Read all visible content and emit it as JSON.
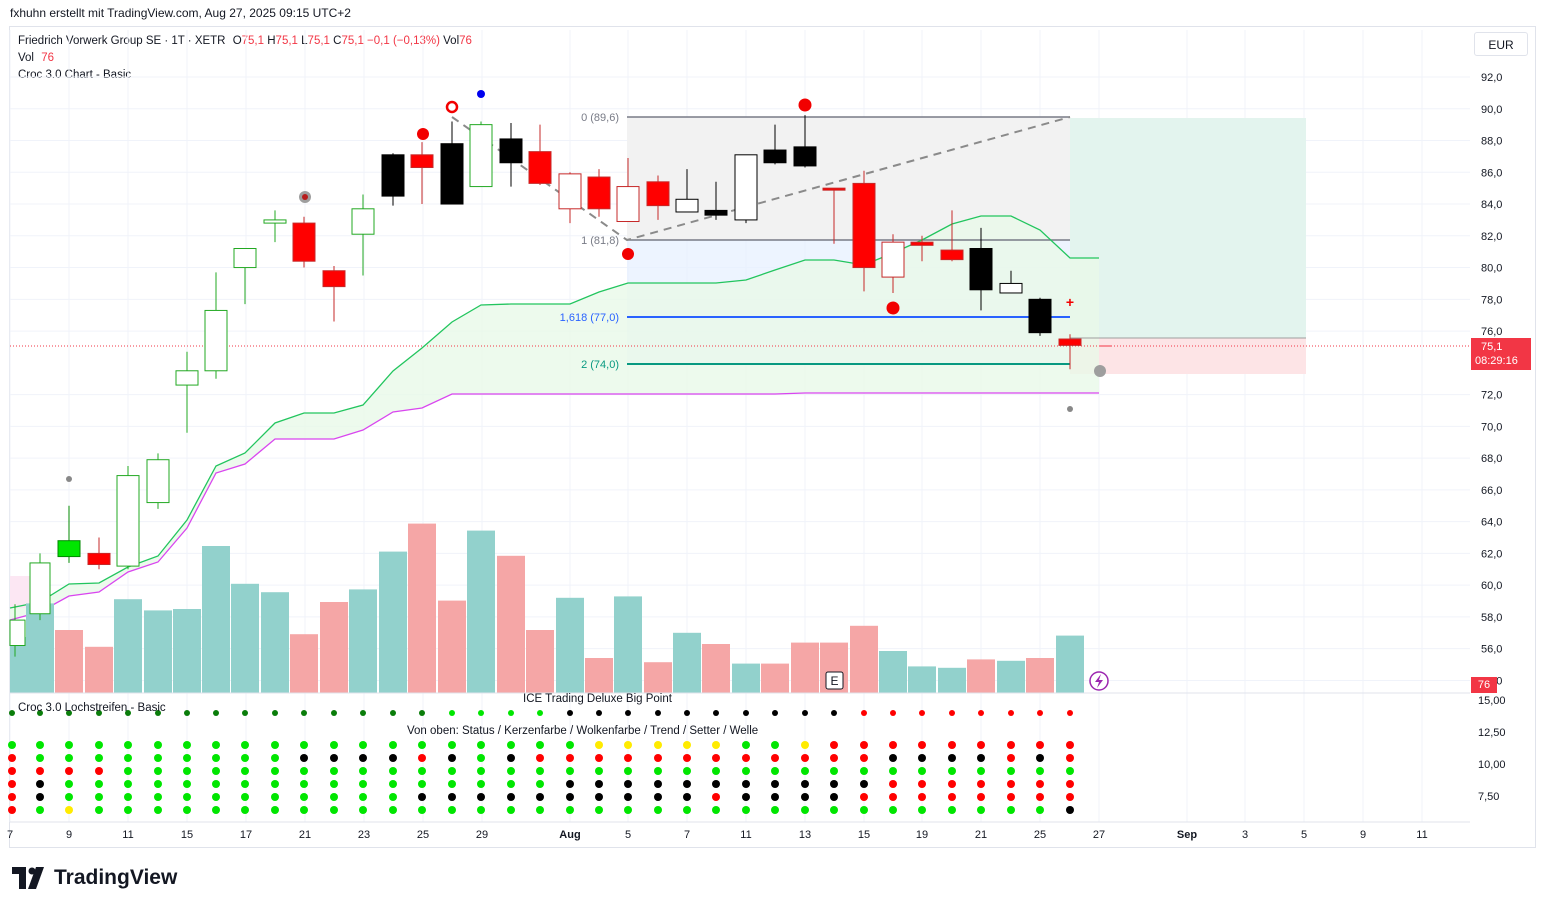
{
  "header": {
    "author_line": "fxhuhn erstellt mit TradingView.com, Aug 27, 2025 09:15 UTC+2"
  },
  "legend": {
    "symbol": "Friedrich Vorwerk Group SE · 1T · XETR",
    "o_label": "O",
    "o_value": "75,1",
    "h_label": "H",
    "h_value": "75,1",
    "l_label": "L",
    "l_value": "75,1",
    "c_label": "C",
    "c_value": "75,1",
    "change": "−0,1 (−0,13%)",
    "vol_label": "Vol",
    "vol_value": "76",
    "vol_line_label": "Vol",
    "vol_line_value": "76",
    "indicator": "Croc 3.0 Chart - Basic"
  },
  "currency": "EUR",
  "price_tag": {
    "price": "75,1",
    "countdown": "08:29:16"
  },
  "volume_tag": "76",
  "pane2": {
    "title_left": "Croc 3.0 Lochstreifen - Basic",
    "title_center_1": "ICE Trading Deluxe Big Point",
    "title_center_2": "Von oben: Status / Kerzenfarbe / Wolkenfarbe / Trend / Setter / Welle"
  },
  "brand": "TradingView",
  "colors": {
    "up": "#089981",
    "down": "#f23645",
    "accent": "#2962ff"
  },
  "chart_data": {
    "type": "candlestick",
    "y_ticks": [
      "92,0",
      "90,0",
      "88,0",
      "86,0",
      "84,0",
      "82,0",
      "80,0",
      "78,0",
      "76,0",
      "72,0",
      "70,0",
      "68,0",
      "66,0",
      "64,0",
      "62,0",
      "60,0",
      "58,0",
      "56,0",
      "54,0"
    ],
    "y2_ticks": [
      "15,00",
      "12,50",
      "10,00",
      "7,50"
    ],
    "x_ticks": [
      "7",
      "9",
      "11",
      "15",
      "17",
      "21",
      "23",
      "25",
      "29",
      "Aug",
      "5",
      "7",
      "11",
      "13",
      "15",
      "19",
      "21",
      "25",
      "27",
      "Sep",
      "3",
      "5",
      "9",
      "11"
    ],
    "fib_labels": [
      "0 (89,6)",
      "1 (81,8)",
      "1,618 (77,0)",
      "2 (74,0)"
    ],
    "candles": [
      {
        "x": 15,
        "o": 56.2,
        "h": 58.8,
        "l": 55.5,
        "c": 57.8,
        "fill": "#ffffff"
      },
      {
        "x": 40,
        "o": 58.2,
        "h": 62.0,
        "l": 57.8,
        "c": 61.4,
        "fill": "#ffffff"
      },
      {
        "x": 69,
        "o": 61.8,
        "h": 65.0,
        "l": 61.4,
        "c": 62.8,
        "fill": "#00e600"
      },
      {
        "x": 99,
        "o": 62.0,
        "h": 63.0,
        "l": 61.0,
        "c": 61.3,
        "fill": "#ff0000"
      },
      {
        "x": 128,
        "o": 61.2,
        "h": 67.5,
        "l": 61.0,
        "c": 66.9,
        "fill": "#ffffff"
      },
      {
        "x": 158,
        "o": 65.2,
        "h": 68.3,
        "l": 64.8,
        "c": 67.9,
        "fill": "#ffffff"
      },
      {
        "x": 187,
        "o": 72.6,
        "h": 74.7,
        "l": 69.6,
        "c": 73.5,
        "fill": "#ffffff"
      },
      {
        "x": 216,
        "o": 73.5,
        "h": 79.7,
        "l": 73.0,
        "c": 77.3,
        "fill": "#ffffff"
      },
      {
        "x": 245,
        "o": 80.0,
        "h": 81.2,
        "l": 77.7,
        "c": 81.2,
        "fill": "#ffffff"
      },
      {
        "x": 275,
        "o": 82.8,
        "h": 83.6,
        "l": 81.6,
        "c": 83.0,
        "fill": "#ffffff"
      },
      {
        "x": 304,
        "o": 82.8,
        "h": 83.2,
        "l": 80.0,
        "c": 80.4,
        "fill": "#ff0000"
      },
      {
        "x": 334,
        "o": 79.8,
        "h": 80.1,
        "l": 76.6,
        "c": 78.8,
        "fill": "#ff0000"
      },
      {
        "x": 363,
        "o": 82.1,
        "h": 84.6,
        "l": 79.5,
        "c": 83.7,
        "fill": "#ffffff"
      },
      {
        "x": 393,
        "o": 84.5,
        "h": 87.2,
        "l": 83.9,
        "c": 87.1,
        "fill": "#000000"
      },
      {
        "x": 422,
        "o": 87.1,
        "h": 87.9,
        "l": 84.0,
        "c": 86.3,
        "fill": "#ff0000"
      },
      {
        "x": 452,
        "o": 87.8,
        "h": 89.2,
        "l": 84.0,
        "c": 84.0,
        "fill": "#000000"
      },
      {
        "x": 481,
        "o": 85.1,
        "h": 89.2,
        "l": 85.1,
        "c": 89.0,
        "fill": "#ffffff"
      },
      {
        "x": 511,
        "o": 88.1,
        "h": 89.1,
        "l": 85.1,
        "c": 86.6,
        "fill": "#000000"
      },
      {
        "x": 540,
        "o": 87.3,
        "h": 89.0,
        "l": 85.2,
        "c": 85.3,
        "fill": "#ff0000"
      },
      {
        "x": 570,
        "o": 85.9,
        "h": 86.0,
        "l": 82.8,
        "c": 83.7,
        "fill": "#ffffff"
      },
      {
        "x": 599,
        "o": 85.7,
        "h": 86.2,
        "l": 83.2,
        "c": 83.7,
        "fill": "#ff0000"
      },
      {
        "x": 628,
        "o": 85.1,
        "h": 86.9,
        "l": 82.9,
        "c": 82.9,
        "fill": "#ffffff"
      },
      {
        "x": 658,
        "o": 85.4,
        "h": 85.8,
        "l": 83.0,
        "c": 83.9,
        "fill": "#ff0000"
      },
      {
        "x": 687,
        "o": 84.3,
        "h": 86.2,
        "l": 83.5,
        "c": 83.5,
        "fill": "#ffffff"
      },
      {
        "x": 716,
        "o": 83.6,
        "h": 85.4,
        "l": 83.0,
        "c": 83.3,
        "fill": "#000000"
      },
      {
        "x": 746,
        "o": 87.1,
        "h": 87.1,
        "l": 82.8,
        "c": 83.0,
        "fill": "#ffffff"
      },
      {
        "x": 775,
        "o": 87.4,
        "h": 89.0,
        "l": 86.5,
        "c": 86.6,
        "fill": "#000000"
      },
      {
        "x": 805,
        "o": 87.6,
        "h": 89.6,
        "l": 86.3,
        "c": 86.4,
        "fill": "#000000"
      },
      {
        "x": 834,
        "o": 85.0,
        "h": 85.0,
        "l": 81.5,
        "c": 84.9,
        "fill": "#ff0000"
      },
      {
        "x": 864,
        "o": 85.3,
        "h": 86.1,
        "l": 78.5,
        "c": 80.0,
        "fill": "#ff0000"
      },
      {
        "x": 893,
        "o": 81.6,
        "h": 82.1,
        "l": 78.4,
        "c": 79.4,
        "fill": "#ffffff"
      },
      {
        "x": 922,
        "o": 81.6,
        "h": 82.0,
        "l": 80.4,
        "c": 81.4,
        "fill": "#ff0000"
      },
      {
        "x": 952,
        "o": 81.1,
        "h": 83.6,
        "l": 80.4,
        "c": 80.5,
        "fill": "#ff0000"
      },
      {
        "x": 981,
        "o": 81.2,
        "h": 82.5,
        "l": 77.3,
        "c": 78.6,
        "fill": "#000000"
      },
      {
        "x": 1011,
        "o": 79.0,
        "h": 79.8,
        "l": 78.4,
        "c": 78.4,
        "fill": "#ffffff"
      },
      {
        "x": 1040,
        "o": 78.0,
        "h": 78.1,
        "l": 75.7,
        "c": 75.9,
        "fill": "#000000"
      },
      {
        "x": 1070,
        "o": 75.5,
        "h": 75.8,
        "l": 73.6,
        "c": 75.1,
        "fill": "#ff0000"
      }
    ],
    "volume_bars": [
      {
        "x": 15,
        "v": 0.4,
        "up": true
      },
      {
        "x": 40,
        "v": 0.64,
        "up": true
      },
      {
        "x": 69,
        "v": 0.45,
        "up": false
      },
      {
        "x": 99,
        "v": 0.33,
        "up": false
      },
      {
        "x": 128,
        "v": 0.67,
        "up": true
      },
      {
        "x": 158,
        "v": 0.59,
        "up": true
      },
      {
        "x": 187,
        "v": 0.6,
        "up": true
      },
      {
        "x": 216,
        "v": 1.05,
        "up": true
      },
      {
        "x": 245,
        "v": 0.78,
        "up": true
      },
      {
        "x": 275,
        "v": 0.72,
        "up": true
      },
      {
        "x": 304,
        "v": 0.42,
        "up": false
      },
      {
        "x": 334,
        "v": 0.65,
        "up": false
      },
      {
        "x": 363,
        "v": 0.74,
        "up": true
      },
      {
        "x": 393,
        "v": 1.01,
        "up": true
      },
      {
        "x": 422,
        "v": 1.21,
        "up": false
      },
      {
        "x": 452,
        "v": 0.66,
        "up": false
      },
      {
        "x": 481,
        "v": 1.16,
        "up": true
      },
      {
        "x": 511,
        "v": 0.98,
        "up": false
      },
      {
        "x": 540,
        "v": 0.45,
        "up": false
      },
      {
        "x": 570,
        "v": 0.68,
        "up": true
      },
      {
        "x": 599,
        "v": 0.25,
        "up": false
      },
      {
        "x": 628,
        "v": 0.69,
        "up": true
      },
      {
        "x": 658,
        "v": 0.22,
        "up": false
      },
      {
        "x": 687,
        "v": 0.43,
        "up": true
      },
      {
        "x": 716,
        "v": 0.35,
        "up": false
      },
      {
        "x": 746,
        "v": 0.21,
        "up": true
      },
      {
        "x": 775,
        "v": 0.21,
        "up": false
      },
      {
        "x": 805,
        "v": 0.36,
        "up": false
      },
      {
        "x": 834,
        "v": 0.36,
        "up": false
      },
      {
        "x": 864,
        "v": 0.48,
        "up": false
      },
      {
        "x": 893,
        "v": 0.3,
        "up": true
      },
      {
        "x": 922,
        "v": 0.19,
        "up": true
      },
      {
        "x": 952,
        "v": 0.18,
        "up": true
      },
      {
        "x": 981,
        "v": 0.24,
        "up": false
      },
      {
        "x": 1011,
        "v": 0.23,
        "up": true
      },
      {
        "x": 1040,
        "v": 0.25,
        "up": false
      },
      {
        "x": 1070,
        "v": 0.41,
        "up": true
      }
    ]
  }
}
